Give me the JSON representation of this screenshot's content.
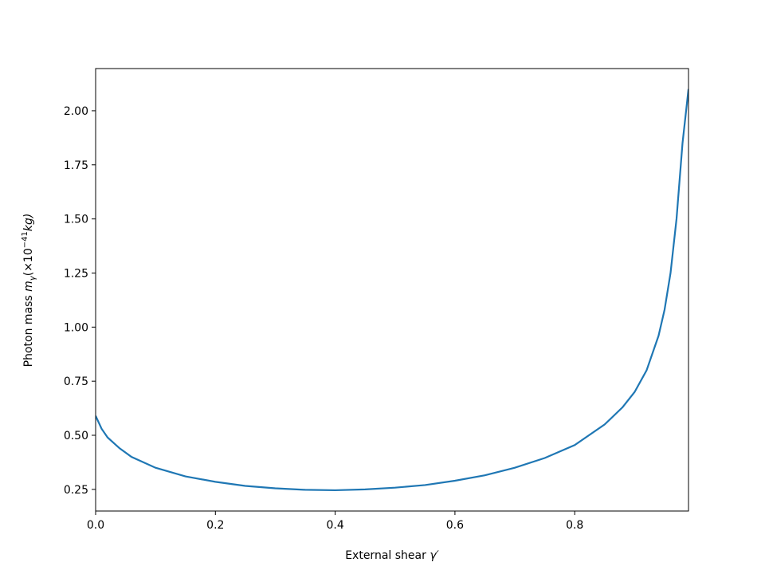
{
  "chart_data": {
    "type": "line",
    "xlabel": [
      "External shear ",
      "γ′"
    ],
    "ylabel": [
      "Photon mass ",
      "m",
      "γ",
      "(×10",
      "−41",
      "kg)"
    ],
    "x": [
      0,
      0.01,
      0.02,
      0.04,
      0.06,
      0.1,
      0.15,
      0.2,
      0.25,
      0.3,
      0.35,
      0.4,
      0.45,
      0.5,
      0.55,
      0.6,
      0.65,
      0.7,
      0.75,
      0.8,
      0.85,
      0.88,
      0.9,
      0.92,
      0.94,
      0.95,
      0.96,
      0.97,
      0.98,
      0.99
    ],
    "series": [
      {
        "color": "#1f77b4",
        "values": [
          0.59,
          0.53,
          0.49,
          0.44,
          0.4,
          0.35,
          0.31,
          0.285,
          0.266,
          0.255,
          0.248,
          0.246,
          0.25,
          0.258,
          0.27,
          0.29,
          0.315,
          0.35,
          0.395,
          0.455,
          0.55,
          0.63,
          0.7,
          0.8,
          0.96,
          1.08,
          1.25,
          1.5,
          1.85,
          2.1
        ]
      }
    ],
    "xlim": [
      0,
      0.99
    ],
    "ylim": [
      0.15,
      2.195
    ],
    "xticks": [
      {
        "value": 0,
        "label": "0.0"
      },
      0.2,
      0.4,
      0.6,
      0.8
    ],
    "yticks": [
      0.25,
      {
        "value": 0.5,
        "label": "0.50"
      },
      0.75,
      {
        "value": 1,
        "label": "1.00"
      },
      1.25,
      {
        "value": 1.5,
        "label": "1.50"
      },
      1.75,
      {
        "value": 2,
        "label": "2.00"
      }
    ]
  }
}
